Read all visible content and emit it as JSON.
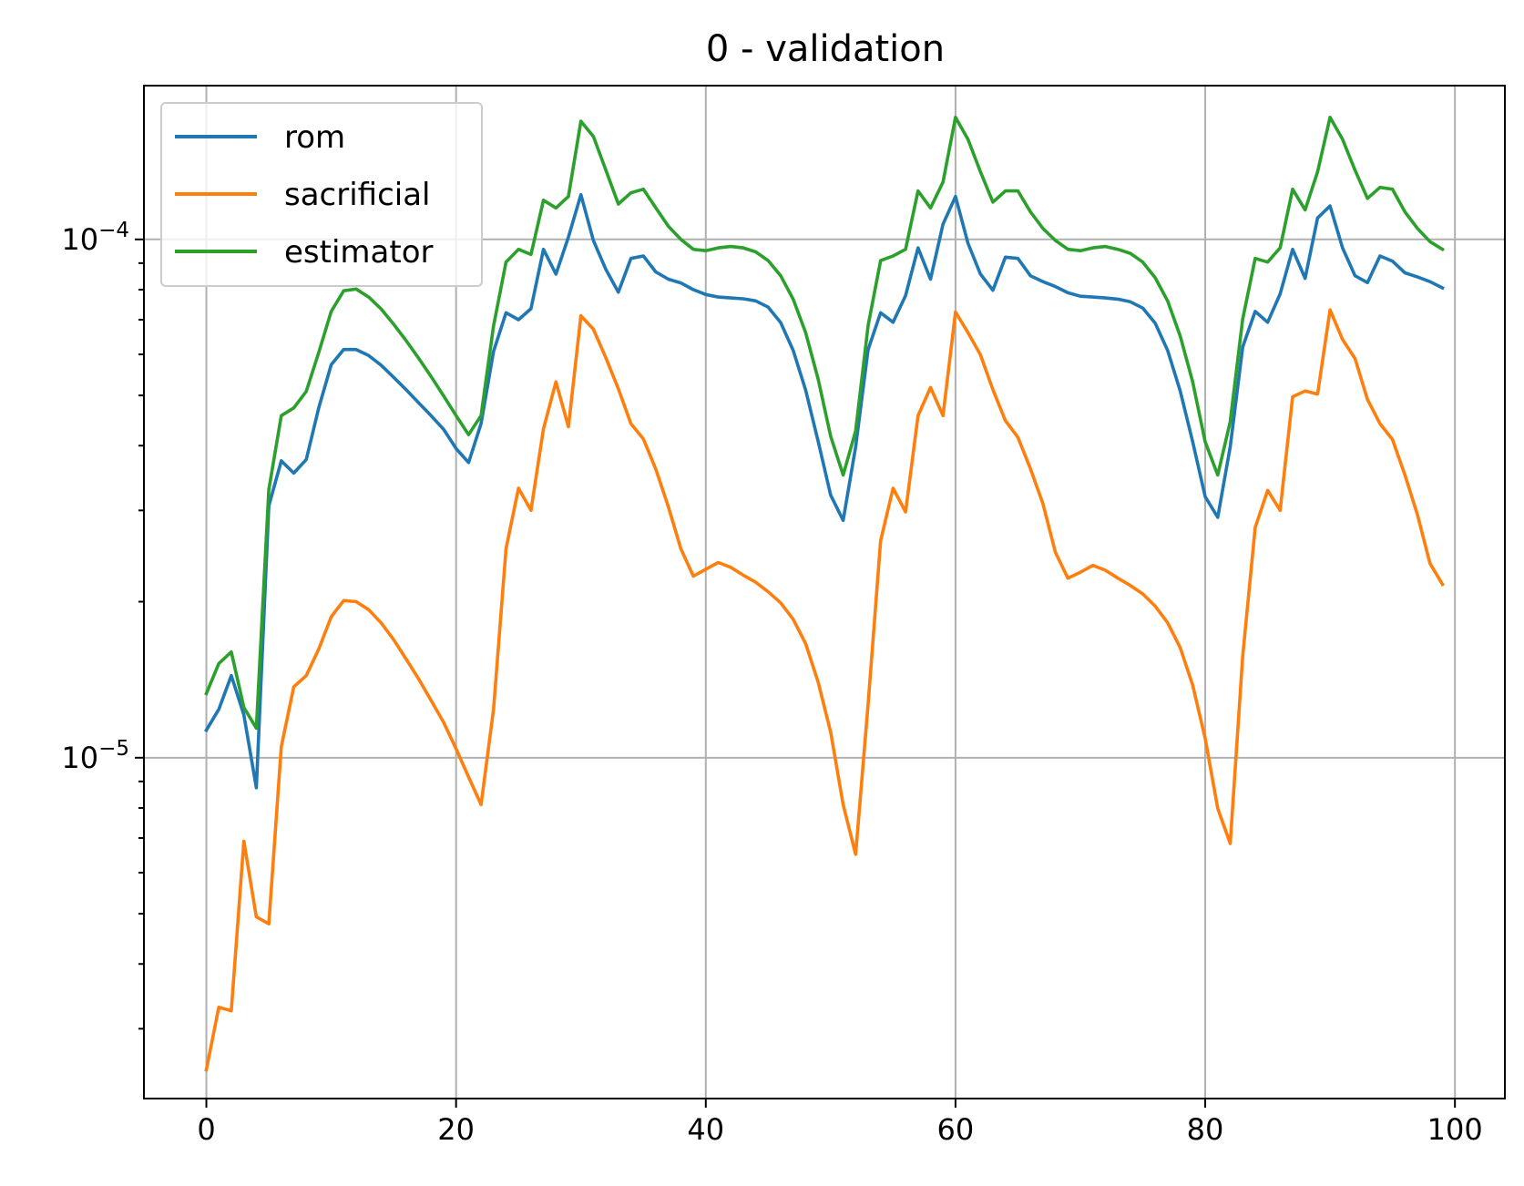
{
  "chart_data": {
    "type": "line",
    "title": "0 - validation",
    "xlabel": "",
    "ylabel": "",
    "xlim": [
      -5,
      104
    ],
    "ylim": [
      2.2e-06,
      0.000198
    ],
    "yscale": "log",
    "xticks": [
      0,
      20,
      40,
      60,
      80,
      100
    ],
    "xtick_labels": [
      "0",
      "20",
      "40",
      "60",
      "80",
      "100"
    ],
    "yticks_major": [
      1e-05,
      0.0001
    ],
    "ytick_labels": [
      {
        "base": "10",
        "exp": "−5"
      },
      {
        "base": "10",
        "exp": "−4"
      }
    ],
    "yticks_minor": [
      3e-06,
      4e-06,
      5e-06,
      6e-06,
      7e-06,
      8e-06,
      9e-06,
      2e-05,
      3e-05,
      4e-05,
      5e-05,
      6e-05,
      7e-05,
      8e-05,
      9e-05
    ],
    "grid": true,
    "legend_position": "upper-left",
    "x": [
      0,
      1,
      2,
      3,
      4,
      5,
      6,
      7,
      8,
      9,
      10,
      11,
      12,
      13,
      14,
      15,
      16,
      17,
      18,
      19,
      20,
      21,
      22,
      23,
      24,
      25,
      26,
      27,
      28,
      29,
      30,
      31,
      32,
      33,
      34,
      35,
      36,
      37,
      38,
      39,
      40,
      41,
      42,
      43,
      44,
      45,
      46,
      47,
      48,
      49,
      50,
      51,
      52,
      53,
      54,
      55,
      56,
      57,
      58,
      59,
      60,
      61,
      62,
      63,
      64,
      65,
      66,
      67,
      68,
      69,
      70,
      71,
      72,
      73,
      74,
      75,
      76,
      77,
      78,
      79,
      80,
      81,
      82,
      83,
      84,
      85,
      86,
      87,
      88,
      89,
      90,
      91,
      92,
      93,
      94,
      95,
      96,
      97,
      98,
      99
    ],
    "series": [
      {
        "name": "rom",
        "color": "#1f77b4",
        "values": [
          1.13e-05,
          1.24e-05,
          1.44e-05,
          1.21e-05,
          8.75e-06,
          3.06e-05,
          3.74e-05,
          3.54e-05,
          3.76e-05,
          4.73e-05,
          5.73e-05,
          6.13e-05,
          6.13e-05,
          5.97e-05,
          5.72e-05,
          5.42e-05,
          5.13e-05,
          4.84e-05,
          4.57e-05,
          4.3e-05,
          3.95e-05,
          3.71e-05,
          4.41e-05,
          6.08e-05,
          7.22e-05,
          7e-05,
          7.35e-05,
          9.57e-05,
          8.57e-05,
          0.000101,
          0.000122,
          9.95e-05,
          8.75e-05,
          7.91e-05,
          9.19e-05,
          9.29e-05,
          8.65e-05,
          8.38e-05,
          8.24e-05,
          8e-05,
          7.83e-05,
          7.74e-05,
          7.71e-05,
          7.68e-05,
          7.61e-05,
          7.4e-05,
          6.91e-05,
          6.11e-05,
          5.12e-05,
          4.08e-05,
          3.21e-05,
          2.87e-05,
          3.98e-05,
          6.13e-05,
          7.22e-05,
          6.92e-05,
          7.79e-05,
          9.63e-05,
          8.38e-05,
          0.000107,
          0.000121,
          9.83e-05,
          8.57e-05,
          7.98e-05,
          9.24e-05,
          9.19e-05,
          8.51e-05,
          8.29e-05,
          8.11e-05,
          7.89e-05,
          7.77e-05,
          7.74e-05,
          7.71e-05,
          7.67e-05,
          7.58e-05,
          7.37e-05,
          6.89e-05,
          6.1e-05,
          5.1e-05,
          4.07e-05,
          3.19e-05,
          2.91e-05,
          3.98e-05,
          6.2e-05,
          7.26e-05,
          6.92e-05,
          7.85e-05,
          9.57e-05,
          8.41e-05,
          0.00011,
          0.000116,
          9.63e-05,
          8.51e-05,
          8.25e-05,
          9.29e-05,
          9.08e-05,
          8.62e-05,
          8.46e-05,
          8.29e-05,
          8.06e-05
        ]
      },
      {
        "name": "sacrificial",
        "color": "#ff7f0e",
        "values": [
          2.5e-06,
          3.3e-06,
          3.25e-06,
          6.9e-06,
          4.93e-06,
          4.78e-06,
          1.05e-05,
          1.37e-05,
          1.44e-05,
          1.62e-05,
          1.87e-05,
          2.01e-05,
          2e-05,
          1.93e-05,
          1.82e-05,
          1.69e-05,
          1.55e-05,
          1.42e-05,
          1.29e-05,
          1.17e-05,
          1.04e-05,
          9.18e-06,
          8.12e-06,
          1.24e-05,
          2.53e-05,
          3.31e-05,
          3e-05,
          4.31e-05,
          5.31e-05,
          4.35e-05,
          7.12e-05,
          6.71e-05,
          5.91e-05,
          5.15e-05,
          4.41e-05,
          4.12e-05,
          3.6e-05,
          3.05e-05,
          2.53e-05,
          2.24e-05,
          2.31e-05,
          2.38e-05,
          2.33e-05,
          2.25e-05,
          2.18e-05,
          2.09e-05,
          1.99e-05,
          1.85e-05,
          1.66e-05,
          1.4e-05,
          1.12e-05,
          8.12e-06,
          6.51e-06,
          1.27e-05,
          2.62e-05,
          3.31e-05,
          2.98e-05,
          4.57e-05,
          5.18e-05,
          4.57e-05,
          7.24e-05,
          6.61e-05,
          5.99e-05,
          5.13e-05,
          4.47e-05,
          4.15e-05,
          3.61e-05,
          3.09e-05,
          2.49e-05,
          2.22e-05,
          2.28e-05,
          2.35e-05,
          2.3e-05,
          2.22e-05,
          2.15e-05,
          2.07e-05,
          1.96e-05,
          1.82e-05,
          1.63e-05,
          1.38e-05,
          1.09e-05,
          7.98e-06,
          6.83e-06,
          1.57e-05,
          2.78e-05,
          3.28e-05,
          3e-05,
          4.97e-05,
          5.1e-05,
          5.03e-05,
          7.31e-05,
          6.41e-05,
          5.89e-05,
          4.91e-05,
          4.41e-05,
          4.11e-05,
          3.51e-05,
          2.94e-05,
          2.37e-05,
          2.16e-05
        ]
      },
      {
        "name": "estimator",
        "color": "#2ca02c",
        "values": [
          1.33e-05,
          1.52e-05,
          1.6e-05,
          1.25e-05,
          1.14e-05,
          3.29e-05,
          4.57e-05,
          4.73e-05,
          5.09e-05,
          6.05e-05,
          7.26e-05,
          7.96e-05,
          8.02e-05,
          7.74e-05,
          7.34e-05,
          6.86e-05,
          6.38e-05,
          5.9e-05,
          5.44e-05,
          4.99e-05,
          4.57e-05,
          4.2e-05,
          4.57e-05,
          6.81e-05,
          9.04e-05,
          9.57e-05,
          9.35e-05,
          0.000119,
          0.000115,
          0.000121,
          0.000169,
          0.000158,
          0.000136,
          0.000117,
          0.000123,
          0.000125,
          0.000115,
          0.000106,
          0.0001,
          9.57e-05,
          9.51e-05,
          9.63e-05,
          9.69e-05,
          9.63e-05,
          9.46e-05,
          9.1e-05,
          8.51e-05,
          7.67e-05,
          6.61e-05,
          5.38e-05,
          4.17e-05,
          3.51e-05,
          4.27e-05,
          6.82e-05,
          9.1e-05,
          9.29e-05,
          9.57e-05,
          0.000124,
          0.000115,
          0.000129,
          0.000172,
          0.000156,
          0.000135,
          0.000118,
          0.000124,
          0.000124,
          0.000113,
          0.000105,
          9.95e-05,
          9.57e-05,
          9.51e-05,
          9.63e-05,
          9.69e-05,
          9.57e-05,
          9.4e-05,
          9.04e-05,
          8.43e-05,
          7.6e-05,
          6.51e-05,
          5.31e-05,
          4.07e-05,
          3.51e-05,
          4.45e-05,
          7.02e-05,
          9.19e-05,
          9.04e-05,
          9.63e-05,
          0.000125,
          0.000114,
          0.000135,
          0.000172,
          0.000156,
          0.000136,
          0.00012,
          0.000126,
          0.000125,
          0.000113,
          0.000105,
          9.9e-05,
          9.57e-05
        ]
      }
    ]
  }
}
